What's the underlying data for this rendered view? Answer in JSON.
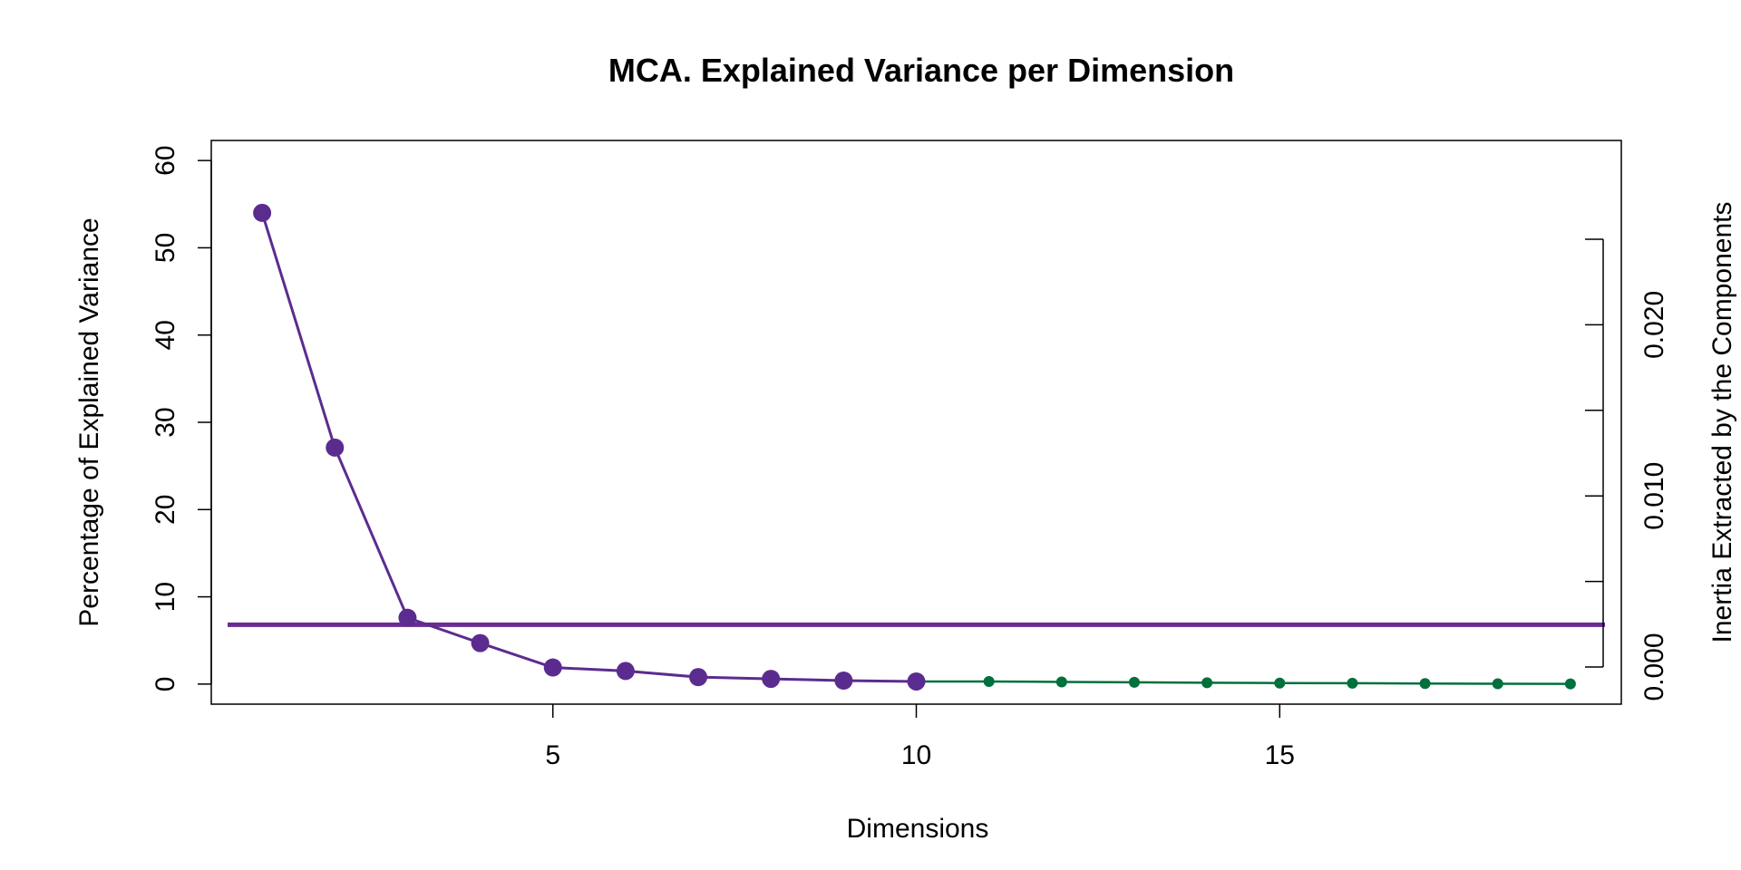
{
  "chart_data": {
    "type": "line",
    "title": "MCA. Explained Variance per Dimension",
    "xlabel": "Dimensions",
    "ylabel": "Percentage of Explained Variance",
    "y2label": "Inertia Extracted by the Components",
    "xlim": [
      0.3,
      19.7
    ],
    "ylim": [
      -2.3,
      62.3
    ],
    "y2lim": [
      0.0,
      0.025
    ],
    "x_ticks": [
      5,
      10,
      15
    ],
    "y_ticks": [
      0,
      10,
      20,
      30,
      40,
      50,
      60
    ],
    "y2_ticks": [
      0.0,
      0.005,
      0.01,
      0.015,
      0.02,
      0.025
    ],
    "y2_tick_labels": [
      "0.000",
      "",
      "0.010",
      "",
      "0.020",
      ""
    ],
    "threshold": 6.8,
    "colors": {
      "retained": "#5B2C8F",
      "other": "#00703C",
      "threshold": "#6A2C91",
      "axis": "#000000"
    },
    "series": [
      {
        "name": "",
        "x": [
          1,
          2,
          3,
          4,
          5,
          6,
          7,
          8,
          9,
          10
        ],
        "values": [
          54.0,
          27.1,
          7.6,
          4.7,
          1.9,
          1.5,
          0.8,
          0.6,
          0.4,
          0.3
        ]
      },
      {
        "name": "",
        "x": [
          10,
          11,
          12,
          13,
          14,
          15,
          16,
          17,
          18,
          19
        ],
        "values": [
          0.3,
          0.3,
          0.25,
          0.2,
          0.15,
          0.12,
          0.1,
          0.06,
          0.04,
          0.02
        ]
      }
    ]
  }
}
